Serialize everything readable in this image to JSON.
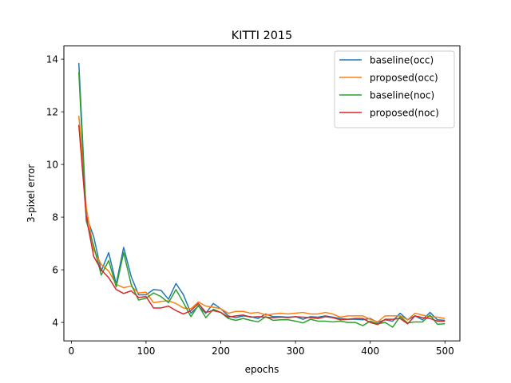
{
  "chart_data": {
    "type": "line",
    "title": "KITTI 2015",
    "xlabel": "epochs",
    "ylabel": "3-pixel error",
    "xlim": [
      -10,
      520
    ],
    "ylim": [
      3.3,
      14.5
    ],
    "xticks": [
      0,
      100,
      200,
      300,
      400,
      500
    ],
    "yticks": [
      4,
      6,
      8,
      10,
      12,
      14
    ],
    "legend_position": "top-right",
    "grid": false,
    "x": [
      10,
      20,
      30,
      40,
      50,
      60,
      70,
      80,
      90,
      100,
      110,
      120,
      130,
      140,
      150,
      160,
      170,
      180,
      190,
      200,
      210,
      220,
      230,
      240,
      250,
      260,
      270,
      280,
      290,
      300,
      310,
      320,
      330,
      340,
      350,
      360,
      370,
      380,
      390,
      400,
      410,
      420,
      430,
      440,
      450,
      460,
      470,
      480,
      490,
      500
    ],
    "series": [
      {
        "name": "baseline(occ)",
        "color": "#1f77b4",
        "values": [
          13.85,
          8.05,
          7.25,
          5.95,
          6.65,
          5.45,
          6.85,
          5.75,
          5.05,
          5.05,
          5.25,
          5.22,
          4.88,
          5.48,
          5.05,
          4.35,
          4.62,
          4.35,
          4.72,
          4.52,
          4.25,
          4.18,
          4.25,
          4.22,
          4.15,
          4.32,
          4.22,
          4.22,
          4.2,
          4.22,
          4.12,
          4.22,
          4.2,
          4.25,
          4.2,
          4.15,
          4.12,
          4.12,
          4.1,
          4.15,
          4.0,
          4.1,
          4.05,
          4.35,
          4.1,
          4.25,
          4.1,
          4.38,
          4.1,
          4.08
        ]
      },
      {
        "name": "proposed(occ)",
        "color": "#ff7f0e",
        "values": [
          11.85,
          8.35,
          6.75,
          6.2,
          5.95,
          5.45,
          5.32,
          5.38,
          5.12,
          5.15,
          4.75,
          4.8,
          4.82,
          4.72,
          4.55,
          4.52,
          4.78,
          4.62,
          4.58,
          4.52,
          4.35,
          4.42,
          4.42,
          4.35,
          4.38,
          4.28,
          4.32,
          4.35,
          4.32,
          4.35,
          4.38,
          4.32,
          4.32,
          4.38,
          4.32,
          4.2,
          4.25,
          4.25,
          4.25,
          4.12,
          4.02,
          4.25,
          4.25,
          4.25,
          4.1,
          4.35,
          4.28,
          4.22,
          4.2,
          4.15
        ]
      },
      {
        "name": "baseline(noc)",
        "color": "#2ca02c",
        "values": [
          13.5,
          7.85,
          6.9,
          5.8,
          6.35,
          5.35,
          6.65,
          5.45,
          4.85,
          4.92,
          5.12,
          4.98,
          4.75,
          5.25,
          4.75,
          4.22,
          4.65,
          4.18,
          4.5,
          4.38,
          4.15,
          4.08,
          4.15,
          4.08,
          4.02,
          4.22,
          4.08,
          4.1,
          4.1,
          4.05,
          3.98,
          4.12,
          4.05,
          4.05,
          4.02,
          4.05,
          4.0,
          4.0,
          3.88,
          4.05,
          3.95,
          4.0,
          3.82,
          4.22,
          3.98,
          4.02,
          4.02,
          4.28,
          3.93,
          3.95
        ]
      },
      {
        "name": "proposed(noc)",
        "color": "#d62728",
        "values": [
          11.5,
          8.0,
          6.5,
          6.0,
          5.7,
          5.25,
          5.1,
          5.2,
          4.95,
          4.98,
          4.55,
          4.55,
          4.62,
          4.45,
          4.32,
          4.45,
          4.72,
          4.38,
          4.45,
          4.38,
          4.2,
          4.25,
          4.28,
          4.2,
          4.22,
          4.2,
          4.18,
          4.2,
          4.18,
          4.22,
          4.2,
          4.18,
          4.15,
          4.22,
          4.18,
          4.1,
          4.12,
          4.15,
          4.15,
          4.0,
          3.92,
          4.12,
          4.12,
          4.15,
          3.95,
          4.25,
          4.18,
          4.15,
          4.05,
          4.05
        ]
      }
    ]
  }
}
